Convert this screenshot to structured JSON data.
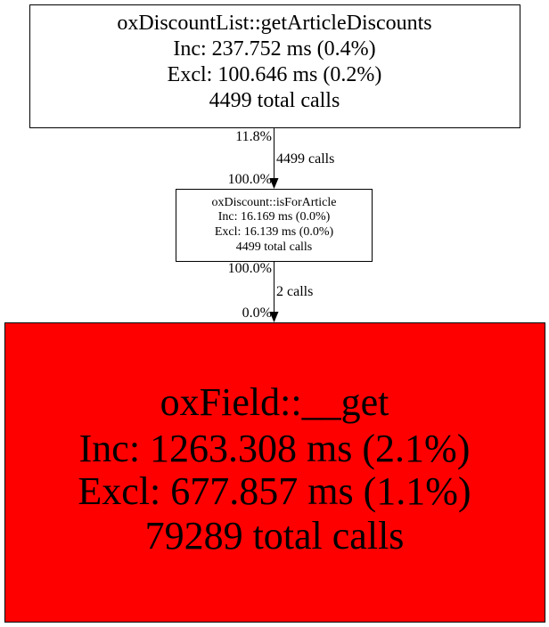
{
  "nodes": {
    "top": {
      "name": "oxDiscountList::getArticleDiscounts",
      "inc": "Inc: 237.752 ms (0.4%)",
      "excl": "Excl: 100.646 ms (0.2%)",
      "calls": "4499 total calls",
      "fill": "#ffffff"
    },
    "middle": {
      "name": "oxDiscount::isForArticle",
      "inc": "Inc: 16.169 ms (0.0%)",
      "excl": "Excl: 16.139 ms (0.0%)",
      "calls": "4499 total calls",
      "fill": "#ffffff"
    },
    "bottom": {
      "name": "oxField::__get",
      "inc": "Inc: 1263.308 ms (2.1%)",
      "excl": "Excl: 677.857 ms (1.1%)",
      "calls": "79289 total calls",
      "fill": "#ff0000"
    }
  },
  "edges": [
    {
      "tail_pct": "11.8%",
      "label": "4499 calls",
      "head_pct": "100.0%"
    },
    {
      "tail_pct": "100.0%",
      "label": "2 calls",
      "head_pct": "0.0%"
    }
  ]
}
